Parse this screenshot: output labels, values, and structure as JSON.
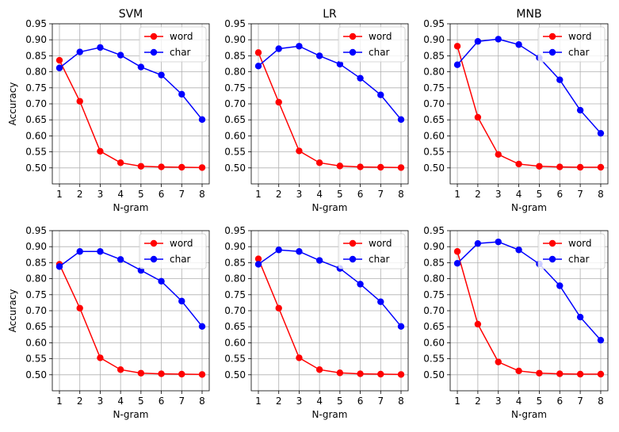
{
  "colors": {
    "word": "#ff0000",
    "char": "#0000ff",
    "grid": "#b0b0b0",
    "axis": "#000000"
  },
  "chart_data": [
    {
      "type": "line",
      "title": "SVM",
      "xlabel": "N-gram",
      "ylabel": "Accuracy",
      "x": [
        1,
        2,
        3,
        4,
        5,
        6,
        7,
        8
      ],
      "xticks": [
        "1",
        "2",
        "3",
        "4",
        "5",
        "6",
        "7",
        "8"
      ],
      "yticks": [
        "0.50",
        "0.55",
        "0.60",
        "0.65",
        "0.70",
        "0.75",
        "0.80",
        "0.85",
        "0.90",
        "0.95"
      ],
      "ylim": [
        0.45,
        0.95
      ],
      "grid": true,
      "legend_position": "top-right",
      "series": [
        {
          "name": "word",
          "values": [
            0.836,
            0.708,
            0.552,
            0.516,
            0.505,
            0.503,
            0.502,
            0.501
          ]
        },
        {
          "name": "char",
          "values": [
            0.812,
            0.862,
            0.876,
            0.852,
            0.815,
            0.79,
            0.73,
            0.651
          ]
        }
      ]
    },
    {
      "type": "line",
      "title": "LR",
      "xlabel": "N-gram",
      "ylabel": "",
      "x": [
        1,
        2,
        3,
        4,
        5,
        6,
        7,
        8
      ],
      "xticks": [
        "1",
        "2",
        "3",
        "4",
        "5",
        "6",
        "7",
        "8"
      ],
      "yticks": [
        "0.50",
        "0.55",
        "0.60",
        "0.65",
        "0.70",
        "0.75",
        "0.80",
        "0.85",
        "0.90",
        "0.95"
      ],
      "ylim": [
        0.45,
        0.95
      ],
      "grid": true,
      "legend_position": "top-right",
      "series": [
        {
          "name": "word",
          "values": [
            0.86,
            0.705,
            0.553,
            0.516,
            0.506,
            0.503,
            0.502,
            0.501
          ]
        },
        {
          "name": "char",
          "values": [
            0.818,
            0.872,
            0.88,
            0.85,
            0.824,
            0.78,
            0.728,
            0.651
          ]
        }
      ]
    },
    {
      "type": "line",
      "title": "MNB",
      "xlabel": "N-gram",
      "ylabel": "",
      "x": [
        1,
        2,
        3,
        4,
        5,
        6,
        7,
        8
      ],
      "xticks": [
        "1",
        "2",
        "3",
        "4",
        "5",
        "6",
        "7",
        "8"
      ],
      "yticks": [
        "0.50",
        "0.55",
        "0.60",
        "0.65",
        "0.70",
        "0.75",
        "0.80",
        "0.85",
        "0.90",
        "0.95"
      ],
      "ylim": [
        0.45,
        0.95
      ],
      "grid": true,
      "legend_position": "top-right",
      "series": [
        {
          "name": "word",
          "values": [
            0.88,
            0.658,
            0.542,
            0.512,
            0.505,
            0.503,
            0.502,
            0.502
          ]
        },
        {
          "name": "char",
          "values": [
            0.822,
            0.895,
            0.902,
            0.885,
            0.844,
            0.775,
            0.68,
            0.608
          ]
        }
      ]
    },
    {
      "type": "line",
      "title": "",
      "xlabel": "N-gram",
      "ylabel": "Accuracy",
      "x": [
        1,
        2,
        3,
        4,
        5,
        6,
        7,
        8
      ],
      "xticks": [
        "1",
        "2",
        "3",
        "4",
        "5",
        "6",
        "7",
        "8"
      ],
      "yticks": [
        "0.50",
        "0.55",
        "0.60",
        "0.65",
        "0.70",
        "0.75",
        "0.80",
        "0.85",
        "0.90",
        "0.95"
      ],
      "ylim": [
        0.45,
        0.95
      ],
      "grid": true,
      "legend_position": "top-right",
      "series": [
        {
          "name": "word",
          "values": [
            0.845,
            0.708,
            0.553,
            0.516,
            0.505,
            0.503,
            0.502,
            0.501
          ]
        },
        {
          "name": "char",
          "values": [
            0.838,
            0.885,
            0.885,
            0.86,
            0.826,
            0.792,
            0.73,
            0.651
          ]
        }
      ]
    },
    {
      "type": "line",
      "title": "",
      "xlabel": "N-gram",
      "ylabel": "",
      "x": [
        1,
        2,
        3,
        4,
        5,
        6,
        7,
        8
      ],
      "xticks": [
        "1",
        "2",
        "3",
        "4",
        "5",
        "6",
        "7",
        "8"
      ],
      "yticks": [
        "0.50",
        "0.55",
        "0.60",
        "0.65",
        "0.70",
        "0.75",
        "0.80",
        "0.85",
        "0.90",
        "0.95"
      ],
      "ylim": [
        0.45,
        0.95
      ],
      "grid": true,
      "legend_position": "top-right",
      "series": [
        {
          "name": "word",
          "values": [
            0.862,
            0.708,
            0.553,
            0.516,
            0.506,
            0.503,
            0.502,
            0.501
          ]
        },
        {
          "name": "char",
          "values": [
            0.845,
            0.89,
            0.885,
            0.857,
            0.832,
            0.783,
            0.728,
            0.651
          ]
        }
      ]
    },
    {
      "type": "line",
      "title": "",
      "xlabel": "N-gram",
      "ylabel": "",
      "x": [
        1,
        2,
        3,
        4,
        5,
        6,
        7,
        8
      ],
      "xticks": [
        "1",
        "2",
        "3",
        "4",
        "5",
        "6",
        "7",
        "8"
      ],
      "yticks": [
        "0.50",
        "0.55",
        "0.60",
        "0.65",
        "0.70",
        "0.75",
        "0.80",
        "0.85",
        "0.90",
        "0.95"
      ],
      "ylim": [
        0.45,
        0.95
      ],
      "grid": true,
      "legend_position": "top-right",
      "series": [
        {
          "name": "word",
          "values": [
            0.885,
            0.658,
            0.54,
            0.512,
            0.505,
            0.503,
            0.502,
            0.502
          ]
        },
        {
          "name": "char",
          "values": [
            0.848,
            0.91,
            0.915,
            0.89,
            0.846,
            0.778,
            0.68,
            0.608
          ]
        }
      ]
    }
  ]
}
